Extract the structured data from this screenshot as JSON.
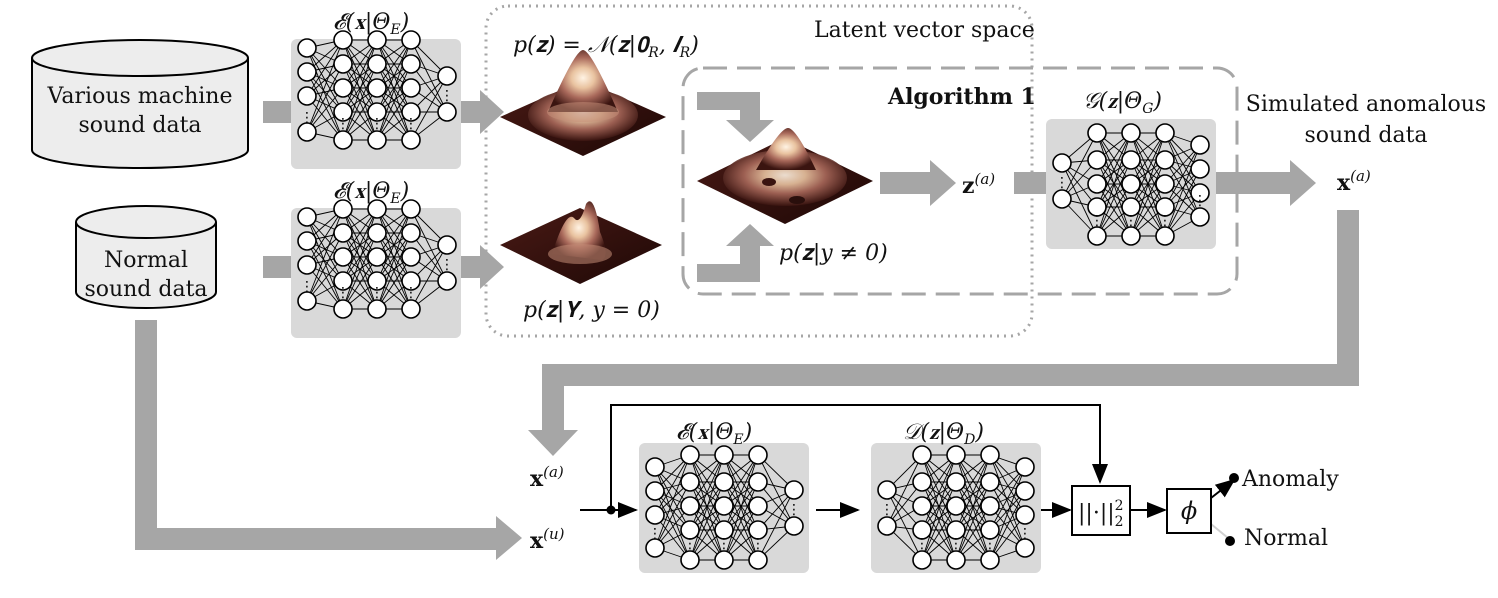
{
  "inputs": {
    "various_line1": "Various machine",
    "various_line2": "sound data",
    "normal_line1": "Normal",
    "normal_line2": "sound data"
  },
  "encoders": {
    "top_label": "𝓔(𝐱|Θ",
    "sub": "E",
    "close": ")"
  },
  "latent": {
    "title": "Latent vector space",
    "prior_label": "p(𝐳) = 𝒩(𝐳|𝟎",
    "prior_sub1": "R",
    "prior_mid": ", 𝑰",
    "prior_sub2": "R",
    "prior_close": ")",
    "normal_label": "p(𝐳|𝚼, y = 0)",
    "anomaly_label": "p(𝐳|y ≠ 0)"
  },
  "algorithm": {
    "title": "Algorithm 1"
  },
  "z_a": {
    "base": "𝐳",
    "sup": "(a)"
  },
  "generator": {
    "label": "𝒢(𝐳|Θ",
    "sub": "G",
    "close": ")"
  },
  "simulated": {
    "line1": "Simulated anomalous",
    "line2": "sound data",
    "x_base": "𝐱",
    "x_sup": "(a)"
  },
  "bottom": {
    "xa_base": "𝐱",
    "xa_sup": "(a)",
    "xu_base": "𝐱",
    "xu_sup": "(u)",
    "enc_label": "𝓔(𝐱|Θ",
    "enc_sub": "E",
    "enc_close": ")",
    "dec_label": "𝒟(𝐳|Θ",
    "dec_sub": "D",
    "dec_close": ")",
    "norm_label": "||·||",
    "norm_sup": "2",
    "norm_sub": "2",
    "phi_label": "ϕ",
    "out_anomaly": "Anomaly",
    "out_normal": "Normal"
  },
  "colors": {
    "arrow_gray": "#a6a6a6",
    "panel_gray": "#d9d9d9",
    "dash_gray": "#a6a6a6",
    "surface_dark": "#2a0f0c",
    "surface_light": "#fff5e8"
  }
}
